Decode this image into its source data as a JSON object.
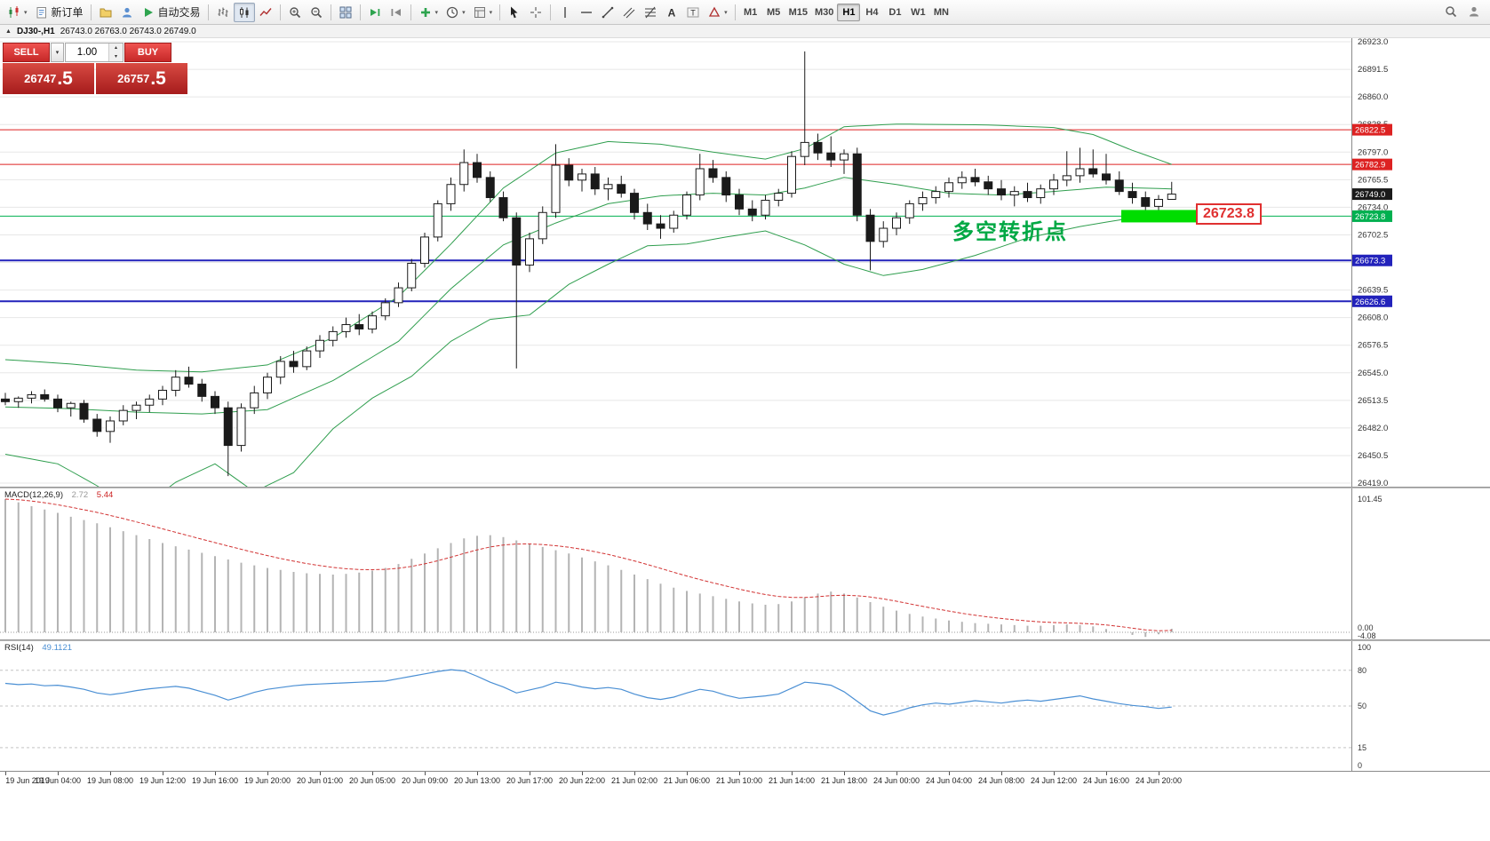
{
  "icons": {
    "collapse": "▲",
    "caret": "▾",
    "spin_up": "▴",
    "spin_down": "▾"
  },
  "toolbar": {
    "buttons": [
      {
        "name": "new-chart",
        "icon": "candlestick-chart-icon",
        "caret": true
      },
      {
        "name": "new-order",
        "icon": "new-order-icon",
        "label": "新订单"
      },
      {
        "sep": true
      },
      {
        "name": "charts-profile",
        "icon": "profiles-icon"
      },
      {
        "name": "community",
        "icon": "community-icon"
      },
      {
        "name": "auto-trading",
        "icon": "play-icon",
        "label": "自动交易"
      },
      {
        "sep": true
      },
      {
        "name": "bar-chart",
        "icon": "bars-icon"
      },
      {
        "name": "candle-chart",
        "icon": "candles-icon",
        "active": true
      },
      {
        "name": "line-chart",
        "icon": "line-chart-icon"
      },
      {
        "sep": true
      },
      {
        "name": "zoom-in",
        "icon": "zoom-in-icon"
      },
      {
        "name": "zoom-out",
        "icon": "zoom-out-icon"
      },
      {
        "sep": true
      },
      {
        "name": "tile-windows",
        "icon": "tile-windows-icon"
      },
      {
        "sep": true
      },
      {
        "name": "auto-scroll",
        "icon": "auto-scroll-icon"
      },
      {
        "name": "chart-shift",
        "icon": "chart-shift-icon"
      },
      {
        "sep": true
      },
      {
        "name": "indicators",
        "icon": "indicators-icon",
        "caret": true
      },
      {
        "name": "periods",
        "icon": "periods-icon",
        "caret": true
      },
      {
        "name": "templates",
        "icon": "templates-icon",
        "caret": true
      },
      {
        "sep": true
      },
      {
        "name": "cursor",
        "icon": "cursor-icon"
      },
      {
        "name": "crosshair",
        "icon": "crosshair-icon"
      },
      {
        "sep": true
      },
      {
        "name": "vertical-line",
        "icon": "vline-icon"
      },
      {
        "name": "horizontal-line",
        "icon": "hline-icon"
      },
      {
        "name": "trendline",
        "icon": "trendline-icon"
      },
      {
        "name": "equidistant-channel",
        "icon": "channel-icon"
      },
      {
        "name": "fibonacci",
        "icon": "fibonacci-icon"
      },
      {
        "name": "text",
        "icon": "text-icon"
      },
      {
        "name": "text-label",
        "icon": "text-label-icon"
      },
      {
        "name": "shapes",
        "icon": "shapes-icon",
        "caret": true
      },
      {
        "sep": true
      }
    ],
    "timeframes": [
      {
        "label": "M1"
      },
      {
        "label": "M5"
      },
      {
        "label": "M15"
      },
      {
        "label": "M30"
      },
      {
        "label": "H1",
        "active": true
      },
      {
        "label": "H4"
      },
      {
        "label": "D1"
      },
      {
        "label": "W1"
      },
      {
        "label": "MN"
      }
    ],
    "right_buttons": [
      {
        "name": "search",
        "icon": "search-icon"
      },
      {
        "name": "profile",
        "icon": "person-icon"
      }
    ]
  },
  "caption": {
    "symbol_period": "DJ30-,H1",
    "ohlc_text": "26743.0 26763.0 26743.0 26749.0"
  },
  "trade_panel": {
    "sell_label": "SELL",
    "buy_label": "BUY",
    "lot_value": "1.00",
    "sell_price_int": "26747",
    "sell_price_frac": ".5",
    "buy_price_int": "26757",
    "buy_price_frac": ".5"
  },
  "chart_data": {
    "type": "candlestick",
    "symbol": "DJ30-",
    "timeframe": "H1",
    "ohlc_current": {
      "open": 26743.0,
      "high": 26763.0,
      "low": 26743.0,
      "close": 26749.0
    },
    "price_axis": {
      "min": 26419.0,
      "max": 26923.0,
      "tick": 31.5
    },
    "label_step": 4,
    "time_labels": [
      "19 Jun 2019",
      "19 Jun 04:00",
      "19 Jun 08:00",
      "19 Jun 12:00",
      "19 Jun 16:00",
      "19 Jun 20:00",
      "20 Jun 01:00",
      "20 Jun 05:00",
      "20 Jun 09:00",
      "20 Jun 13:00",
      "20 Jun 17:00",
      "20 Jun 22:00",
      "21 Jun 02:00",
      "21 Jun 06:00",
      "21 Jun 10:00",
      "21 Jun 14:00",
      "21 Jun 18:00",
      "24 Jun 00:00",
      "24 Jun 04:00",
      "24 Jun 08:00",
      "24 Jun 12:00",
      "24 Jun 16:00",
      "24 Jun 20:00"
    ],
    "candles": [
      [
        26515,
        26522,
        26508,
        26512
      ],
      [
        26512,
        26518,
        26505,
        26516
      ],
      [
        26516,
        26524,
        26510,
        26520
      ],
      [
        26520,
        26526,
        26512,
        26515
      ],
      [
        26515,
        26520,
        26500,
        26505
      ],
      [
        26505,
        26512,
        26495,
        26510
      ],
      [
        26510,
        26514,
        26488,
        26492
      ],
      [
        26492,
        26498,
        26472,
        26478
      ],
      [
        26478,
        26495,
        26465,
        26490
      ],
      [
        26490,
        26508,
        26485,
        26502
      ],
      [
        26502,
        26512,
        26492,
        26508
      ],
      [
        26508,
        26520,
        26500,
        26515
      ],
      [
        26515,
        26530,
        26508,
        26525
      ],
      [
        26525,
        26548,
        26518,
        26540
      ],
      [
        26540,
        26552,
        26528,
        26532
      ],
      [
        26532,
        26538,
        26512,
        26518
      ],
      [
        26518,
        26524,
        26498,
        26505
      ],
      [
        26505,
        26512,
        26427,
        26462
      ],
      [
        26462,
        26510,
        26455,
        26505
      ],
      [
        26505,
        26530,
        26498,
        26522
      ],
      [
        26522,
        26545,
        26515,
        26540
      ],
      [
        26540,
        26564,
        26532,
        26558
      ],
      [
        26558,
        26570,
        26545,
        26552
      ],
      [
        26552,
        26575,
        26548,
        26570
      ],
      [
        26570,
        26588,
        26562,
        26582
      ],
      [
        26582,
        26598,
        26575,
        26592
      ],
      [
        26592,
        26608,
        26585,
        26600
      ],
      [
        26600,
        26612,
        26588,
        26595
      ],
      [
        26595,
        26615,
        26590,
        26610
      ],
      [
        26610,
        26630,
        26605,
        26625
      ],
      [
        26625,
        26648,
        26620,
        26642
      ],
      [
        26642,
        26675,
        26638,
        26670
      ],
      [
        26670,
        26705,
        26665,
        26700
      ],
      [
        26700,
        26742,
        26695,
        26738
      ],
      [
        26738,
        26768,
        26730,
        26760
      ],
      [
        26760,
        26800,
        26752,
        26785
      ],
      [
        26785,
        26795,
        26762,
        26768
      ],
      [
        26768,
        26775,
        26740,
        26745
      ],
      [
        26745,
        26752,
        26718,
        26722
      ],
      [
        26722,
        26728,
        26550,
        26668
      ],
      [
        26668,
        26705,
        26660,
        26698
      ],
      [
        26698,
        26735,
        26692,
        26728
      ],
      [
        26728,
        26806,
        26722,
        26782
      ],
      [
        26782,
        26790,
        26758,
        26765
      ],
      [
        26765,
        26778,
        26752,
        26772
      ],
      [
        26772,
        26780,
        26748,
        26755
      ],
      [
        26755,
        26768,
        26742,
        26760
      ],
      [
        26760,
        26770,
        26745,
        26750
      ],
      [
        26750,
        26755,
        26720,
        26728
      ],
      [
        26728,
        26738,
        26708,
        26715
      ],
      [
        26715,
        26725,
        26698,
        26710
      ],
      [
        26710,
        26730,
        26705,
        26725
      ],
      [
        26725,
        26752,
        26720,
        26748
      ],
      [
        26748,
        26795,
        26742,
        26778
      ],
      [
        26778,
        26788,
        26762,
        26768
      ],
      [
        26768,
        26775,
        26740,
        26748
      ],
      [
        26748,
        26755,
        26725,
        26732
      ],
      [
        26732,
        26742,
        26718,
        26725
      ],
      [
        26725,
        26748,
        26720,
        26742
      ],
      [
        26742,
        26755,
        26735,
        26750
      ],
      [
        26750,
        26798,
        26745,
        26792
      ],
      [
        26792,
        26912,
        26782,
        26808
      ],
      [
        26808,
        26818,
        26788,
        26796
      ],
      [
        26796,
        26815,
        26780,
        26788
      ],
      [
        26788,
        26800,
        26772,
        26795
      ],
      [
        26795,
        26802,
        26718,
        26725
      ],
      [
        26725,
        26732,
        26662,
        26695
      ],
      [
        26695,
        26718,
        26688,
        26710
      ],
      [
        26710,
        26728,
        26702,
        26722
      ],
      [
        26722,
        26742,
        26715,
        26738
      ],
      [
        26738,
        26752,
        26730,
        26745
      ],
      [
        26745,
        26758,
        26738,
        26752
      ],
      [
        26752,
        26768,
        26745,
        26762
      ],
      [
        26762,
        26775,
        26755,
        26768
      ],
      [
        26768,
        26778,
        26758,
        26763
      ],
      [
        26763,
        26770,
        26748,
        26755
      ],
      [
        26755,
        26765,
        26742,
        26748
      ],
      [
        26748,
        26758,
        26735,
        26752
      ],
      [
        26752,
        26762,
        26740,
        26745
      ],
      [
        26745,
        26760,
        26738,
        26755
      ],
      [
        26755,
        26772,
        26748,
        26765
      ],
      [
        26765,
        26798,
        26758,
        26770
      ],
      [
        26770,
        26802,
        26762,
        26778
      ],
      [
        26778,
        26800,
        26768,
        26772
      ],
      [
        26772,
        26795,
        26760,
        26765
      ],
      [
        26765,
        26775,
        26748,
        26752
      ],
      [
        26752,
        26762,
        26738,
        26745
      ],
      [
        26745,
        26752,
        26728,
        26735
      ],
      [
        26735,
        26748,
        26725,
        26743
      ],
      [
        26743,
        26763,
        26743,
        26749
      ]
    ],
    "bollinger": {
      "color": "#2f9e4e",
      "upper": [
        [
          0,
          26560
        ],
        [
          5,
          26555
        ],
        [
          10,
          26548
        ],
        [
          15,
          26546
        ],
        [
          20,
          26554
        ],
        [
          25,
          26585
        ],
        [
          30,
          26632
        ],
        [
          34,
          26692
        ],
        [
          38,
          26756
        ],
        [
          42,
          26796
        ],
        [
          46,
          26809
        ],
        [
          50,
          26806
        ],
        [
          54,
          26797
        ],
        [
          58,
          26789
        ],
        [
          61,
          26801
        ],
        [
          64,
          26826
        ],
        [
          68,
          26829
        ],
        [
          75,
          26828
        ],
        [
          80,
          26825
        ],
        [
          83,
          26817
        ],
        [
          86,
          26799
        ],
        [
          89,
          26783
        ]
      ],
      "middle": [
        [
          0,
          26506
        ],
        [
          5,
          26504
        ],
        [
          10,
          26500
        ],
        [
          15,
          26498
        ],
        [
          20,
          26503
        ],
        [
          25,
          26536
        ],
        [
          30,
          26581
        ],
        [
          34,
          26641
        ],
        [
          38,
          26691
        ],
        [
          42,
          26716
        ],
        [
          46,
          26738
        ],
        [
          50,
          26747
        ],
        [
          54,
          26750
        ],
        [
          58,
          26748
        ],
        [
          61,
          26756
        ],
        [
          64,
          26768
        ],
        [
          68,
          26760
        ],
        [
          72,
          26750
        ],
        [
          76,
          26748
        ],
        [
          80,
          26752
        ],
        [
          84,
          26757
        ],
        [
          89,
          26755
        ]
      ],
      "lower": [
        [
          0,
          26452
        ],
        [
          4,
          26441
        ],
        [
          7,
          26416
        ],
        [
          10,
          26386
        ],
        [
          13,
          26420
        ],
        [
          16,
          26441
        ],
        [
          19,
          26409
        ],
        [
          22,
          26431
        ],
        [
          25,
          26481
        ],
        [
          28,
          26516
        ],
        [
          31,
          26541
        ],
        [
          34,
          26581
        ],
        [
          37,
          26606
        ],
        [
          40,
          26611
        ],
        [
          43,
          26646
        ],
        [
          46,
          26669
        ],
        [
          49,
          26690
        ],
        [
          52,
          26692
        ],
        [
          55,
          26700
        ],
        [
          58,
          26707
        ],
        [
          61,
          26691
        ],
        [
          64,
          26669
        ],
        [
          67,
          26656
        ],
        [
          70,
          26663
        ],
        [
          74,
          26679
        ],
        [
          78,
          26699
        ],
        [
          82,
          26712
        ],
        [
          86,
          26722
        ],
        [
          89,
          26727
        ]
      ]
    },
    "levels": [
      {
        "price": 26822.5,
        "color": "#dd2222",
        "line_width": 1
      },
      {
        "price": 26782.9,
        "color": "#dd2222",
        "line_width": 1
      },
      {
        "price": 26749.0,
        "color": "#1a1a1a",
        "line_width": 1,
        "role": "current-price"
      },
      {
        "price": 26723.8,
        "color": "#00b050",
        "line_width": 1
      },
      {
        "price": 26673.3,
        "color": "#2222bb",
        "line_width": 2
      },
      {
        "price": 26626.6,
        "color": "#2222bb",
        "line_width": 2
      }
    ],
    "highlight": {
      "price": 26723.8,
      "label": "26723.8",
      "rect_color": "#00dd00"
    },
    "annotation": {
      "text": "多空转折点",
      "color": "#00a844"
    },
    "macd": {
      "label": "MACD(12,26,9)",
      "main_value": "2.72",
      "signal_value": "5.44",
      "axis_max": "101.45",
      "axis_zero": "0.00",
      "axis_min": "-4.08",
      "histogram": [
        101.45,
        99,
        96,
        93.5,
        91,
        88,
        85.5,
        83,
        80,
        77,
        74,
        71,
        68,
        65.5,
        63,
        60.5,
        58,
        55.5,
        53,
        51,
        49,
        47.5,
        46,
        45,
        44.5,
        44,
        44.5,
        45.5,
        47,
        49,
        52,
        56,
        60,
        64,
        68,
        71.5,
        73.5,
        74,
        72.5,
        70,
        67.5,
        65,
        62.5,
        60,
        57,
        54,
        51,
        47.5,
        44,
        40.5,
        37,
        34,
        31.5,
        29.5,
        27.5,
        25.5,
        23.5,
        22,
        21,
        21.5,
        23.5,
        26.5,
        29.5,
        31,
        29.5,
        26.5,
        23,
        19.5,
        16.5,
        14,
        12,
        10.5,
        9,
        8,
        7,
        6.5,
        6,
        5.5,
        5,
        5,
        5.5,
        6,
        5.5,
        4.5,
        2.5,
        0,
        -2,
        -3.5,
        -1.5,
        2.72
      ]
    },
    "rsi": {
      "label": "RSI(14)",
      "value": "49.1121",
      "levels": [
        80,
        50,
        15
      ],
      "axis_labels": [
        "100",
        "80",
        "50",
        "15",
        "0"
      ],
      "values": [
        69,
        68,
        68.5,
        67,
        67.5,
        66,
        64,
        61,
        59.5,
        61,
        63,
        64.5,
        65.5,
        66.5,
        65,
        62,
        59,
        55,
        58,
        61.5,
        64,
        65.5,
        67,
        68,
        68.5,
        69,
        69.5,
        70,
        70.5,
        71,
        73,
        75,
        77,
        79,
        80.5,
        79.5,
        75,
        70,
        66,
        61,
        63.5,
        66,
        70,
        68.5,
        66,
        64.5,
        65.5,
        64,
        60,
        57,
        55.5,
        57.5,
        61,
        64,
        62.5,
        59,
        56.5,
        57.5,
        58.5,
        60,
        65,
        70,
        69,
        67.5,
        62,
        54,
        46,
        42.5,
        45,
        48.5,
        51,
        52.5,
        51.5,
        53,
        54.5,
        53.5,
        52.5,
        54,
        55,
        54,
        55.5,
        57,
        58.5,
        56,
        54,
        52,
        50.5,
        49.5,
        48,
        49.11
      ]
    }
  }
}
